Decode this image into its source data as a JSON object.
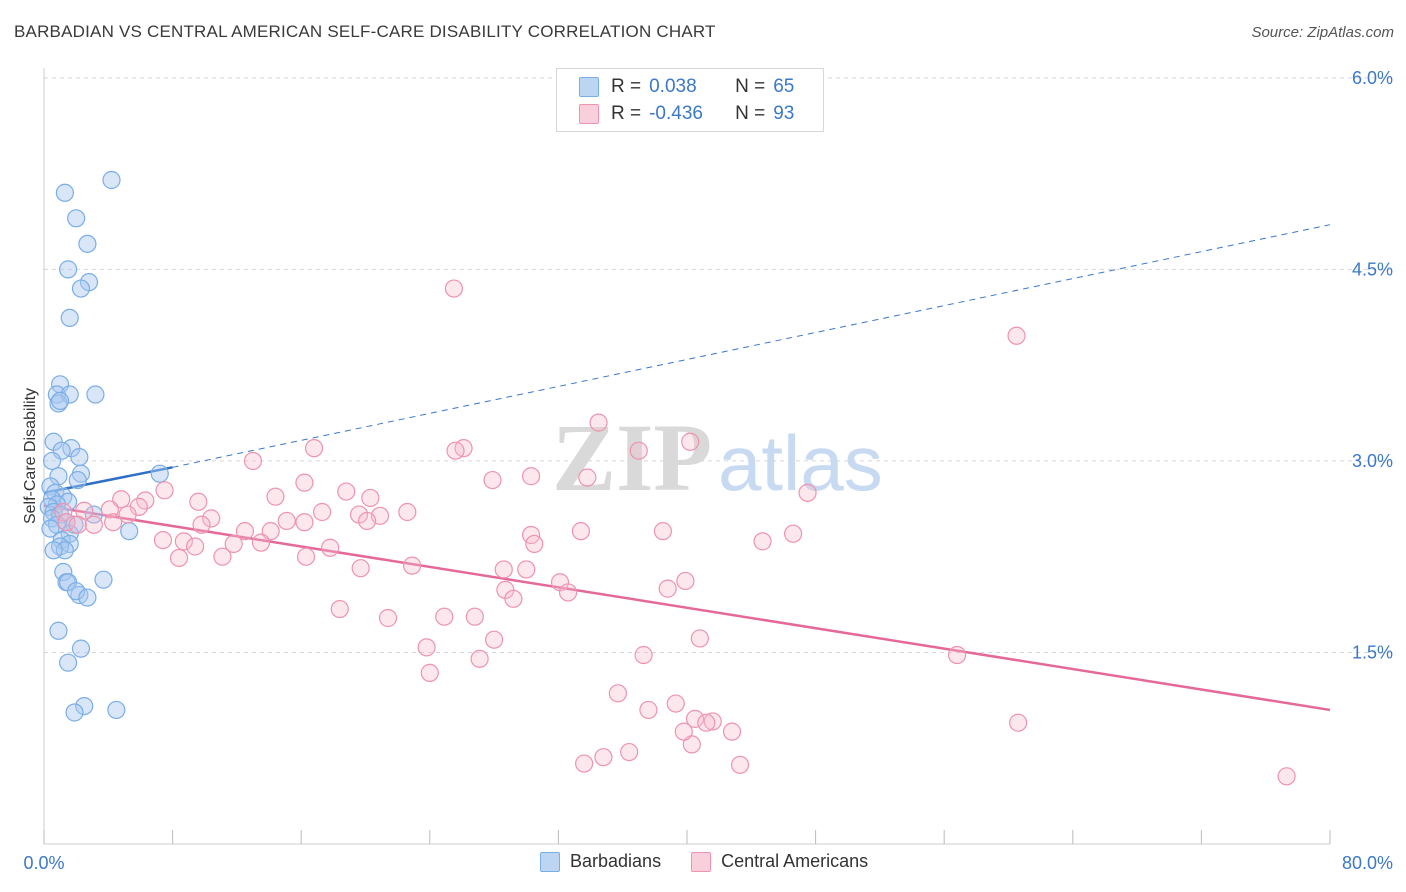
{
  "title": "BARBADIAN VS CENTRAL AMERICAN SELF-CARE DISABILITY CORRELATION CHART",
  "source": "Source: ZipAtlas.com",
  "watermark": {
    "zip": "ZIP",
    "atlas": "atlas"
  },
  "legend_top": [
    {
      "r_label": "R =",
      "r_value": "0.038",
      "n_label": "N =",
      "n_value": "65",
      "color": "#a8c8ef"
    },
    {
      "r_label": "R =",
      "r_value": "-0.436",
      "n_label": "N =",
      "n_value": "93",
      "color": "#f6b9cc"
    }
  ],
  "legend_bottom": [
    {
      "label": "Barbadians",
      "color": "#a8c8ef"
    },
    {
      "label": "Central Americans",
      "color": "#f6b9cc"
    }
  ],
  "chart_data": {
    "type": "scatter",
    "title": "BARBADIAN VS CENTRAL AMERICAN SELF-CARE DISABILITY CORRELATION CHART",
    "xlabel": "",
    "ylabel": "Self-Care Disability",
    "x_tick_labels": [
      "0.0%",
      "80.0%"
    ],
    "y_tick_labels": [
      "1.5%",
      "3.0%",
      "4.5%",
      "6.0%"
    ],
    "y_ticks": [
      1.5,
      3.0,
      4.5,
      6.0
    ],
    "xlim": [
      0,
      80
    ],
    "ylim": [
      0,
      6.2
    ],
    "grid": "horizontal dashed",
    "legend": "top-center and bottom",
    "series": [
      {
        "name": "Barbadians",
        "color": "#7aaee6",
        "points": [
          [
            4.2,
            5.2
          ],
          [
            1.3,
            5.1
          ],
          [
            2.0,
            4.9
          ],
          [
            2.7,
            4.7
          ],
          [
            1.5,
            4.5
          ],
          [
            2.8,
            4.4
          ],
          [
            2.3,
            4.35
          ],
          [
            1.6,
            4.12
          ],
          [
            1.0,
            3.6
          ],
          [
            0.8,
            3.52
          ],
          [
            1.6,
            3.52
          ],
          [
            3.2,
            3.52
          ],
          [
            0.9,
            3.45
          ],
          [
            1.0,
            3.47
          ],
          [
            0.6,
            3.15
          ],
          [
            1.7,
            3.1
          ],
          [
            1.1,
            3.08
          ],
          [
            2.2,
            3.03
          ],
          [
            0.5,
            3.0
          ],
          [
            2.3,
            2.9
          ],
          [
            0.9,
            2.88
          ],
          [
            2.1,
            2.85
          ],
          [
            0.4,
            2.8
          ],
          [
            0.7,
            2.75
          ],
          [
            1.2,
            2.72
          ],
          [
            0.5,
            2.7
          ],
          [
            1.5,
            2.68
          ],
          [
            0.8,
            2.66
          ],
          [
            0.3,
            2.64
          ],
          [
            0.6,
            2.6
          ],
          [
            1.0,
            2.58
          ],
          [
            3.1,
            2.58
          ],
          [
            0.5,
            2.55
          ],
          [
            1.4,
            2.52
          ],
          [
            0.8,
            2.5
          ],
          [
            1.9,
            2.5
          ],
          [
            0.4,
            2.47
          ],
          [
            1.6,
            2.43
          ],
          [
            7.2,
            2.9
          ],
          [
            5.3,
            2.45
          ],
          [
            1.1,
            2.38
          ],
          [
            1.6,
            2.35
          ],
          [
            1.0,
            2.33
          ],
          [
            1.3,
            2.3
          ],
          [
            0.6,
            2.3
          ],
          [
            1.2,
            2.13
          ],
          [
            1.4,
            2.05
          ],
          [
            1.5,
            2.05
          ],
          [
            3.7,
            2.07
          ],
          [
            2.2,
            1.95
          ],
          [
            2.0,
            1.98
          ],
          [
            2.7,
            1.93
          ],
          [
            0.9,
            1.67
          ],
          [
            2.3,
            1.53
          ],
          [
            1.5,
            1.42
          ],
          [
            2.5,
            1.08
          ],
          [
            1.9,
            1.03
          ],
          [
            4.5,
            1.05
          ]
        ],
        "trend": {
          "x": [
            0,
            8
          ],
          "y": [
            2.75,
            2.95
          ],
          "dashed_extension": {
            "x": [
              8,
              80
            ],
            "y": [
              2.95,
              4.85
            ]
          }
        }
      },
      {
        "name": "Central Americans",
        "color": "#ee93b0",
        "points": [
          [
            25.5,
            4.35
          ],
          [
            60.5,
            3.98
          ],
          [
            34.5,
            3.3
          ],
          [
            40.2,
            3.15
          ],
          [
            16.8,
            3.1
          ],
          [
            26.1,
            3.1
          ],
          [
            25.6,
            3.08
          ],
          [
            37.0,
            3.08
          ],
          [
            13.0,
            3.0
          ],
          [
            27.9,
            2.85
          ],
          [
            30.3,
            2.88
          ],
          [
            33.8,
            2.87
          ],
          [
            16.2,
            2.83
          ],
          [
            47.5,
            2.75
          ],
          [
            7.5,
            2.77
          ],
          [
            18.8,
            2.76
          ],
          [
            14.4,
            2.72
          ],
          [
            20.3,
            2.71
          ],
          [
            6.3,
            2.69
          ],
          [
            4.8,
            2.7
          ],
          [
            9.6,
            2.68
          ],
          [
            4.1,
            2.62
          ],
          [
            5.9,
            2.64
          ],
          [
            2.5,
            2.61
          ],
          [
            1.2,
            2.6
          ],
          [
            17.3,
            2.6
          ],
          [
            22.6,
            2.6
          ],
          [
            19.6,
            2.58
          ],
          [
            20.9,
            2.57
          ],
          [
            10.4,
            2.55
          ],
          [
            5.2,
            2.58
          ],
          [
            1.4,
            2.52
          ],
          [
            2.1,
            2.5
          ],
          [
            3.1,
            2.5
          ],
          [
            9.8,
            2.5
          ],
          [
            15.1,
            2.53
          ],
          [
            16.2,
            2.52
          ],
          [
            20.1,
            2.53
          ],
          [
            4.3,
            2.52
          ],
          [
            12.5,
            2.45
          ],
          [
            14.1,
            2.45
          ],
          [
            30.3,
            2.42
          ],
          [
            33.4,
            2.45
          ],
          [
            38.5,
            2.45
          ],
          [
            46.6,
            2.43
          ],
          [
            7.4,
            2.38
          ],
          [
            8.7,
            2.37
          ],
          [
            11.8,
            2.35
          ],
          [
            13.5,
            2.36
          ],
          [
            30.5,
            2.35
          ],
          [
            44.7,
            2.37
          ],
          [
            9.4,
            2.33
          ],
          [
            16.3,
            2.25
          ],
          [
            17.8,
            2.32
          ],
          [
            8.4,
            2.24
          ],
          [
            11.1,
            2.25
          ],
          [
            19.7,
            2.16
          ],
          [
            22.9,
            2.18
          ],
          [
            28.6,
            2.15
          ],
          [
            32.1,
            2.05
          ],
          [
            38.8,
            2.0
          ],
          [
            39.9,
            2.06
          ],
          [
            30.0,
            2.15
          ],
          [
            28.7,
            1.99
          ],
          [
            32.6,
            1.97
          ],
          [
            29.2,
            1.92
          ],
          [
            24.9,
            1.78
          ],
          [
            26.8,
            1.78
          ],
          [
            21.4,
            1.77
          ],
          [
            18.4,
            1.84
          ],
          [
            28.0,
            1.6
          ],
          [
            40.8,
            1.61
          ],
          [
            23.8,
            1.54
          ],
          [
            27.1,
            1.45
          ],
          [
            37.3,
            1.48
          ],
          [
            56.8,
            1.48
          ],
          [
            24.0,
            1.34
          ],
          [
            35.7,
            1.18
          ],
          [
            37.6,
            1.05
          ],
          [
            39.3,
            1.1
          ],
          [
            40.5,
            0.98
          ],
          [
            41.6,
            0.96
          ],
          [
            42.8,
            0.88
          ],
          [
            41.2,
            0.95
          ],
          [
            60.6,
            0.95
          ],
          [
            40.3,
            0.78
          ],
          [
            36.4,
            0.72
          ],
          [
            33.6,
            0.63
          ],
          [
            34.8,
            0.68
          ],
          [
            43.3,
            0.62
          ],
          [
            77.3,
            0.53
          ],
          [
            39.8,
            0.88
          ]
        ],
        "trend": {
          "x": [
            0,
            80
          ],
          "y": [
            2.65,
            1.05
          ]
        }
      }
    ]
  }
}
